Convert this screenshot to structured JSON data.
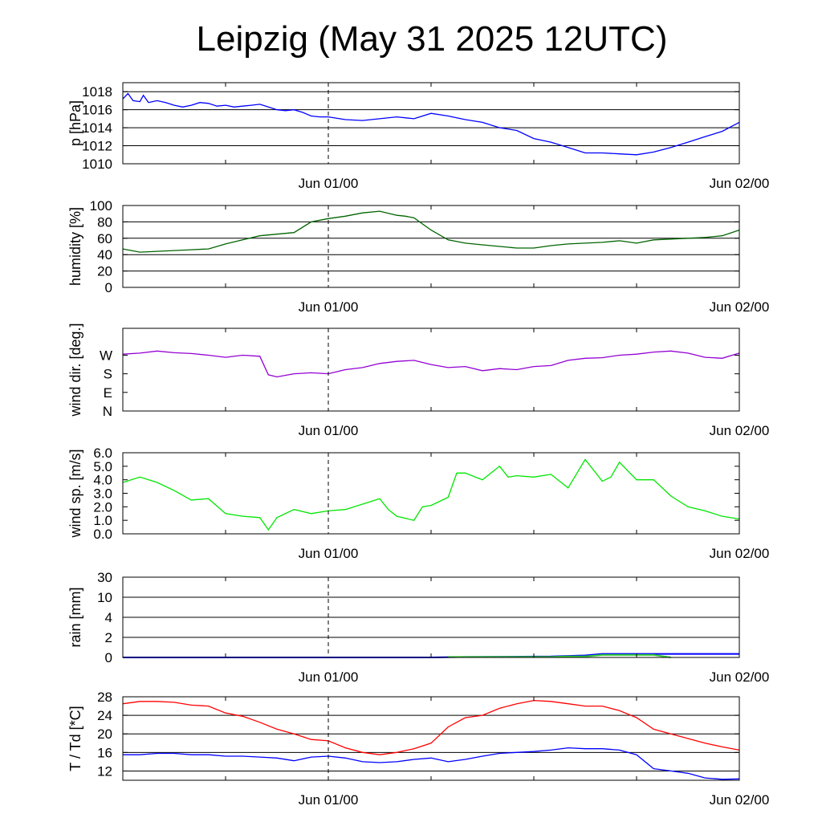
{
  "title": "Leipzig (May 31 2025 12UTC)",
  "chart_data": [
    {
      "type": "line",
      "ylabel": "p [hPa]",
      "xlabel": "",
      "x_unit": "hours since May 31 2025 12UTC",
      "xlim": [
        0,
        36
      ],
      "ylim": [
        1010,
        1019
      ],
      "yticks": [
        "1010",
        "1012",
        "1014",
        "1016",
        "1018"
      ],
      "ytick_values": [
        1010,
        1012,
        1014,
        1016,
        1018
      ],
      "xtick_labels": [
        "Jun 01/00",
        "Jun 02/00"
      ],
      "grid": true,
      "series": [
        {
          "color": "#0000ff",
          "x": [
            0,
            0.3,
            0.6,
            1,
            1.2,
            1.5,
            2,
            2.5,
            3,
            3.5,
            4,
            4.5,
            5,
            5.5,
            6,
            6.5,
            7,
            7.5,
            8,
            8.5,
            9,
            9.5,
            10,
            10.5,
            11,
            11.5,
            12,
            13,
            14,
            15,
            16,
            17,
            18,
            19,
            20,
            21,
            22,
            23,
            24,
            25,
            26,
            27,
            28,
            29,
            30,
            31,
            32,
            33,
            34,
            35,
            36
          ],
          "y": [
            1017.2,
            1017.8,
            1017.0,
            1016.9,
            1017.6,
            1016.8,
            1017.0,
            1016.8,
            1016.5,
            1016.3,
            1016.5,
            1016.8,
            1016.7,
            1016.4,
            1016.5,
            1016.3,
            1016.4,
            1016.5,
            1016.6,
            1016.3,
            1016.0,
            1015.9,
            1016.0,
            1015.7,
            1015.3,
            1015.2,
            1015.2,
            1014.9,
            1014.8,
            1015.0,
            1015.2,
            1015.0,
            1015.6,
            1015.3,
            1014.9,
            1014.6,
            1014.0,
            1013.7,
            1012.8,
            1012.4,
            1011.8,
            1011.2,
            1011.2,
            1011.1,
            1011.0,
            1011.3,
            1011.8,
            1012.4,
            1013.0,
            1013.6,
            1014.6
          ]
        }
      ]
    },
    {
      "type": "line",
      "ylabel": "humidity [%]",
      "xlabel": "",
      "x_unit": "hours since May 31 2025 12UTC",
      "xlim": [
        0,
        36
      ],
      "ylim": [
        0,
        100
      ],
      "yticks": [
        "0",
        "20",
        "40",
        "60",
        "80",
        "100"
      ],
      "ytick_values": [
        0,
        20,
        40,
        60,
        80,
        100
      ],
      "xtick_labels": [
        "Jun 01/00",
        "Jun 02/00"
      ],
      "grid": true,
      "series": [
        {
          "color": "#006400",
          "x": [
            0,
            1,
            2,
            3,
            4,
            5,
            6,
            7,
            8,
            9,
            10,
            11,
            12,
            13,
            14,
            15,
            16,
            16.5,
            17,
            18,
            19,
            20,
            21,
            22,
            23,
            24,
            25,
            26,
            27,
            28,
            29,
            30,
            31,
            32,
            33,
            34,
            35,
            36
          ],
          "y": [
            47,
            43,
            44,
            45,
            46,
            47,
            53,
            58,
            63,
            65,
            67,
            80,
            84,
            87,
            91,
            93,
            88,
            87,
            85,
            70,
            58,
            54,
            52,
            50,
            48,
            48,
            51,
            53,
            54,
            55,
            57,
            54,
            58,
            59,
            60,
            61,
            63,
            70
          ]
        }
      ]
    },
    {
      "type": "line",
      "ylabel": "wind dir. [deg.]",
      "xlabel": "",
      "x_unit": "hours since May 31 2025 12UTC",
      "xlim": [
        0,
        36
      ],
      "ylim": [
        0,
        400
      ],
      "yticks": [
        "N",
        "E",
        "S",
        "W"
      ],
      "ytick_values": [
        0,
        90,
        180,
        270
      ],
      "xtick_labels": [
        "Jun 01/00",
        "Jun 02/00"
      ],
      "grid": false,
      "series": [
        {
          "color": "#9400d3",
          "x": [
            0,
            1,
            2,
            3,
            4,
            5,
            6,
            7,
            8,
            8.5,
            9,
            10,
            11,
            12,
            13,
            14,
            15,
            16,
            17,
            18,
            19,
            20,
            21,
            22,
            23,
            24,
            25,
            26,
            27,
            28,
            29,
            30,
            31,
            32,
            33,
            34,
            35,
            36
          ],
          "y": [
            275,
            280,
            290,
            282,
            278,
            270,
            260,
            270,
            265,
            175,
            165,
            180,
            185,
            180,
            200,
            210,
            230,
            240,
            245,
            225,
            210,
            215,
            195,
            205,
            200,
            215,
            220,
            245,
            255,
            258,
            270,
            275,
            285,
            290,
            280,
            260,
            255,
            280
          ]
        }
      ]
    },
    {
      "type": "line",
      "ylabel": "wind sp. [m/s]",
      "xlabel": "",
      "x_unit": "hours since May 31 2025 12UTC",
      "xlim": [
        0,
        36
      ],
      "ylim": [
        0,
        6
      ],
      "yticks": [
        "0.0",
        "1.0",
        "2.0",
        "3.0",
        "4.0",
        "5.0",
        "6.0"
      ],
      "ytick_values": [
        0,
        1,
        2,
        3,
        4,
        5,
        6
      ],
      "xtick_labels": [
        "Jun 01/00",
        "Jun 02/00"
      ],
      "grid": false,
      "series": [
        {
          "color": "#00e600",
          "x": [
            0,
            1,
            2,
            3,
            4,
            5,
            6,
            7,
            8,
            8.5,
            9,
            10,
            11,
            12,
            13,
            14,
            15,
            15.5,
            16,
            17,
            17.5,
            18,
            19,
            19.5,
            20,
            21,
            22,
            22.5,
            23,
            24,
            25,
            26,
            27,
            28,
            28.5,
            29,
            30,
            31,
            32,
            33,
            34,
            35,
            36
          ],
          "y": [
            3.8,
            4.2,
            3.8,
            3.2,
            2.5,
            2.6,
            1.5,
            1.3,
            1.2,
            0.3,
            1.2,
            1.8,
            1.5,
            1.7,
            1.8,
            2.2,
            2.6,
            1.8,
            1.3,
            1.0,
            2.0,
            2.1,
            2.7,
            4.5,
            4.5,
            4.0,
            5.0,
            4.2,
            4.3,
            4.2,
            4.4,
            3.4,
            5.5,
            3.9,
            4.2,
            5.3,
            4.0,
            4.0,
            2.8,
            2.0,
            1.7,
            1.3,
            1.1
          ]
        }
      ]
    },
    {
      "type": "area",
      "ylabel": "rain [mm]",
      "xlabel": "",
      "x_unit": "hours since May 31 2025 12UTC",
      "xlim": [
        0,
        36
      ],
      "ylim": [
        0,
        30
      ],
      "yscale": "nonlinear",
      "yticks": [
        "0",
        "2",
        "4",
        "10",
        "30"
      ],
      "ytick_values": [
        0,
        2,
        4,
        10,
        30
      ],
      "xtick_labels": [
        "Jun 01/00",
        "Jun 02/00"
      ],
      "grid": true,
      "series": [
        {
          "color": "#0000ff",
          "x": [
            0,
            18,
            20,
            25,
            27,
            28,
            36
          ],
          "y": [
            0,
            0,
            0.05,
            0.1,
            0.2,
            0.35,
            0.35
          ]
        },
        {
          "color": "#33cc33",
          "x": [
            19,
            20,
            21,
            22,
            23,
            24,
            25,
            26,
            27,
            28,
            29,
            30,
            31,
            32
          ],
          "y": [
            0.05,
            0.05,
            0.05,
            0.05,
            0.05,
            0.05,
            0.05,
            0.1,
            0.1,
            0.25,
            0.25,
            0.25,
            0.25,
            0
          ]
        }
      ]
    },
    {
      "type": "line",
      "ylabel": "T / Td [*C]",
      "xlabel": "",
      "x_unit": "hours since May 31 2025 12UTC",
      "xlim": [
        0,
        36
      ],
      "ylim": [
        10,
        28
      ],
      "yticks": [
        "12",
        "16",
        "20",
        "24",
        "28"
      ],
      "ytick_values": [
        12,
        16,
        20,
        24,
        28
      ],
      "xtick_labels": [
        "Jun 01/00",
        "Jun 02/00"
      ],
      "grid": true,
      "series": [
        {
          "color": "#ff0000",
          "x": [
            0,
            1,
            2,
            3,
            4,
            5,
            6,
            7,
            8,
            9,
            10,
            11,
            12,
            13,
            14,
            15,
            16,
            17,
            18,
            19,
            20,
            21,
            22,
            23,
            24,
            25,
            26,
            27,
            28,
            29,
            30,
            31,
            32,
            33,
            34,
            35,
            36
          ],
          "y": [
            26.5,
            27.0,
            27.0,
            26.8,
            26.2,
            26.0,
            24.5,
            23.8,
            22.5,
            21.0,
            20.0,
            18.8,
            18.5,
            17.0,
            16.0,
            15.5,
            16.0,
            16.8,
            18.0,
            21.5,
            23.5,
            24.0,
            25.5,
            26.5,
            27.2,
            27.0,
            26.5,
            26.0,
            26.0,
            25.0,
            23.5,
            21.0,
            20.0,
            19.0,
            18.0,
            17.2,
            16.5
          ]
        },
        {
          "color": "#0000ff",
          "x": [
            0,
            1,
            2,
            3,
            4,
            5,
            6,
            7,
            8,
            9,
            10,
            11,
            12,
            13,
            14,
            15,
            16,
            17,
            18,
            19,
            20,
            21,
            22,
            23,
            24,
            25,
            26,
            27,
            28,
            29,
            30,
            31,
            32,
            33,
            34,
            35,
            36
          ],
          "y": [
            15.5,
            15.5,
            15.8,
            15.8,
            15.5,
            15.5,
            15.2,
            15.2,
            15.0,
            14.8,
            14.2,
            15.0,
            15.2,
            14.8,
            14.0,
            13.8,
            14.0,
            14.5,
            14.8,
            14.0,
            14.5,
            15.2,
            15.8,
            16.0,
            16.2,
            16.5,
            17.0,
            16.8,
            16.8,
            16.5,
            15.5,
            12.5,
            12.0,
            11.5,
            10.5,
            10.2,
            10.3
          ]
        }
      ]
    }
  ]
}
